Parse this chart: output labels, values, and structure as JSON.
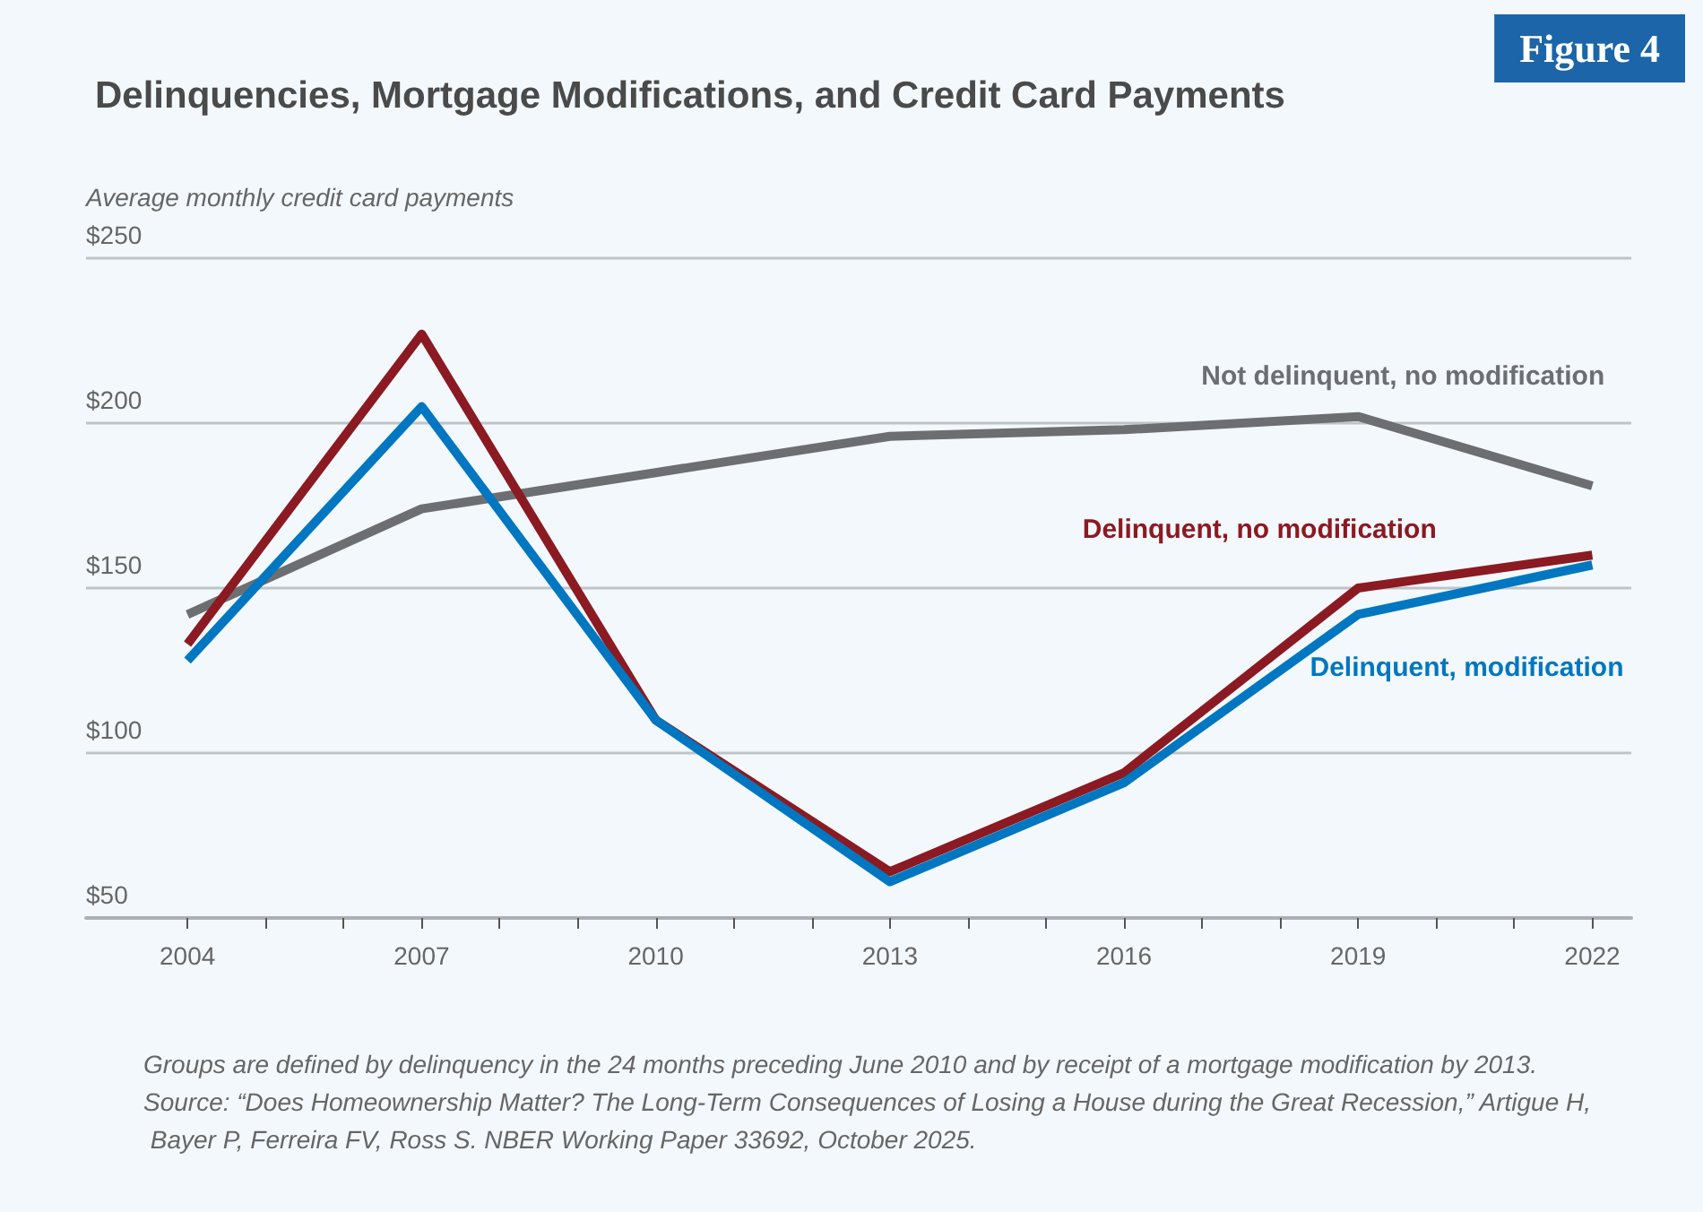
{
  "chart_data": {
    "type": "line",
    "title": "Delinquencies, Mortgage Modifications, and Credit Card Payments",
    "ylabel": "Average monthly credit card payments",
    "annotations": [
      "Figure 4",
      "Groups are defined by delinquency in the 24 months preceding June 2010 and by receipt of a mortgage modification by 2013.",
      "Source: “Does Homeownership Matter? The Long-Term Consequences of Losing a House during the Great Recession,” Artigue H, Bayer P, Ferreira FV, Ross S. NBER Working Paper 33692, October 2025."
    ],
    "x": [
      2004,
      2007,
      2010,
      2013,
      2016,
      2019,
      2022
    ],
    "series": [
      {
        "name": "Not delinquent, no modification",
        "color": "#6d6e71",
        "values": [
          142,
          174,
          185,
          196,
          198,
          202,
          181
        ]
      },
      {
        "name": "Delinquent, no modification",
        "color": "#8b1a22",
        "values": [
          133,
          227,
          110,
          64,
          94,
          150,
          160
        ]
      },
      {
        "name": "Delinquent, modification",
        "color": "#0077c0",
        "values": [
          128,
          205,
          110,
          61,
          91,
          142,
          157
        ]
      }
    ],
    "xlim": [
      2002.7,
      2022.5
    ],
    "xticks": [
      2004,
      {
        "value": 2005,
        "label": null
      },
      {
        "value": 2006,
        "label": null
      },
      2007,
      {
        "value": 2008,
        "label": null
      },
      {
        "value": 2009,
        "label": null
      },
      2010,
      {
        "value": 2011,
        "label": null
      },
      {
        "value": 2012,
        "label": null
      },
      2013,
      {
        "value": 2014,
        "label": null
      },
      {
        "value": 2015,
        "label": null
      },
      2016,
      {
        "value": 2017,
        "label": null
      },
      {
        "value": 2018,
        "label": null
      },
      2019,
      {
        "value": 2020,
        "label": null
      },
      {
        "value": 2021,
        "label": null
      },
      2022
    ],
    "ylim": [
      50,
      250
    ],
    "yticks": [
      {
        "value": 50,
        "label": "$50"
      },
      {
        "value": 100,
        "label": "$100"
      },
      {
        "value": 150,
        "label": "$150"
      },
      {
        "value": 200,
        "label": "$200"
      },
      {
        "value": 250,
        "label": "$250"
      }
    ],
    "grid": "y",
    "legend": false,
    "marker": "none",
    "line_style": "solid"
  }
}
